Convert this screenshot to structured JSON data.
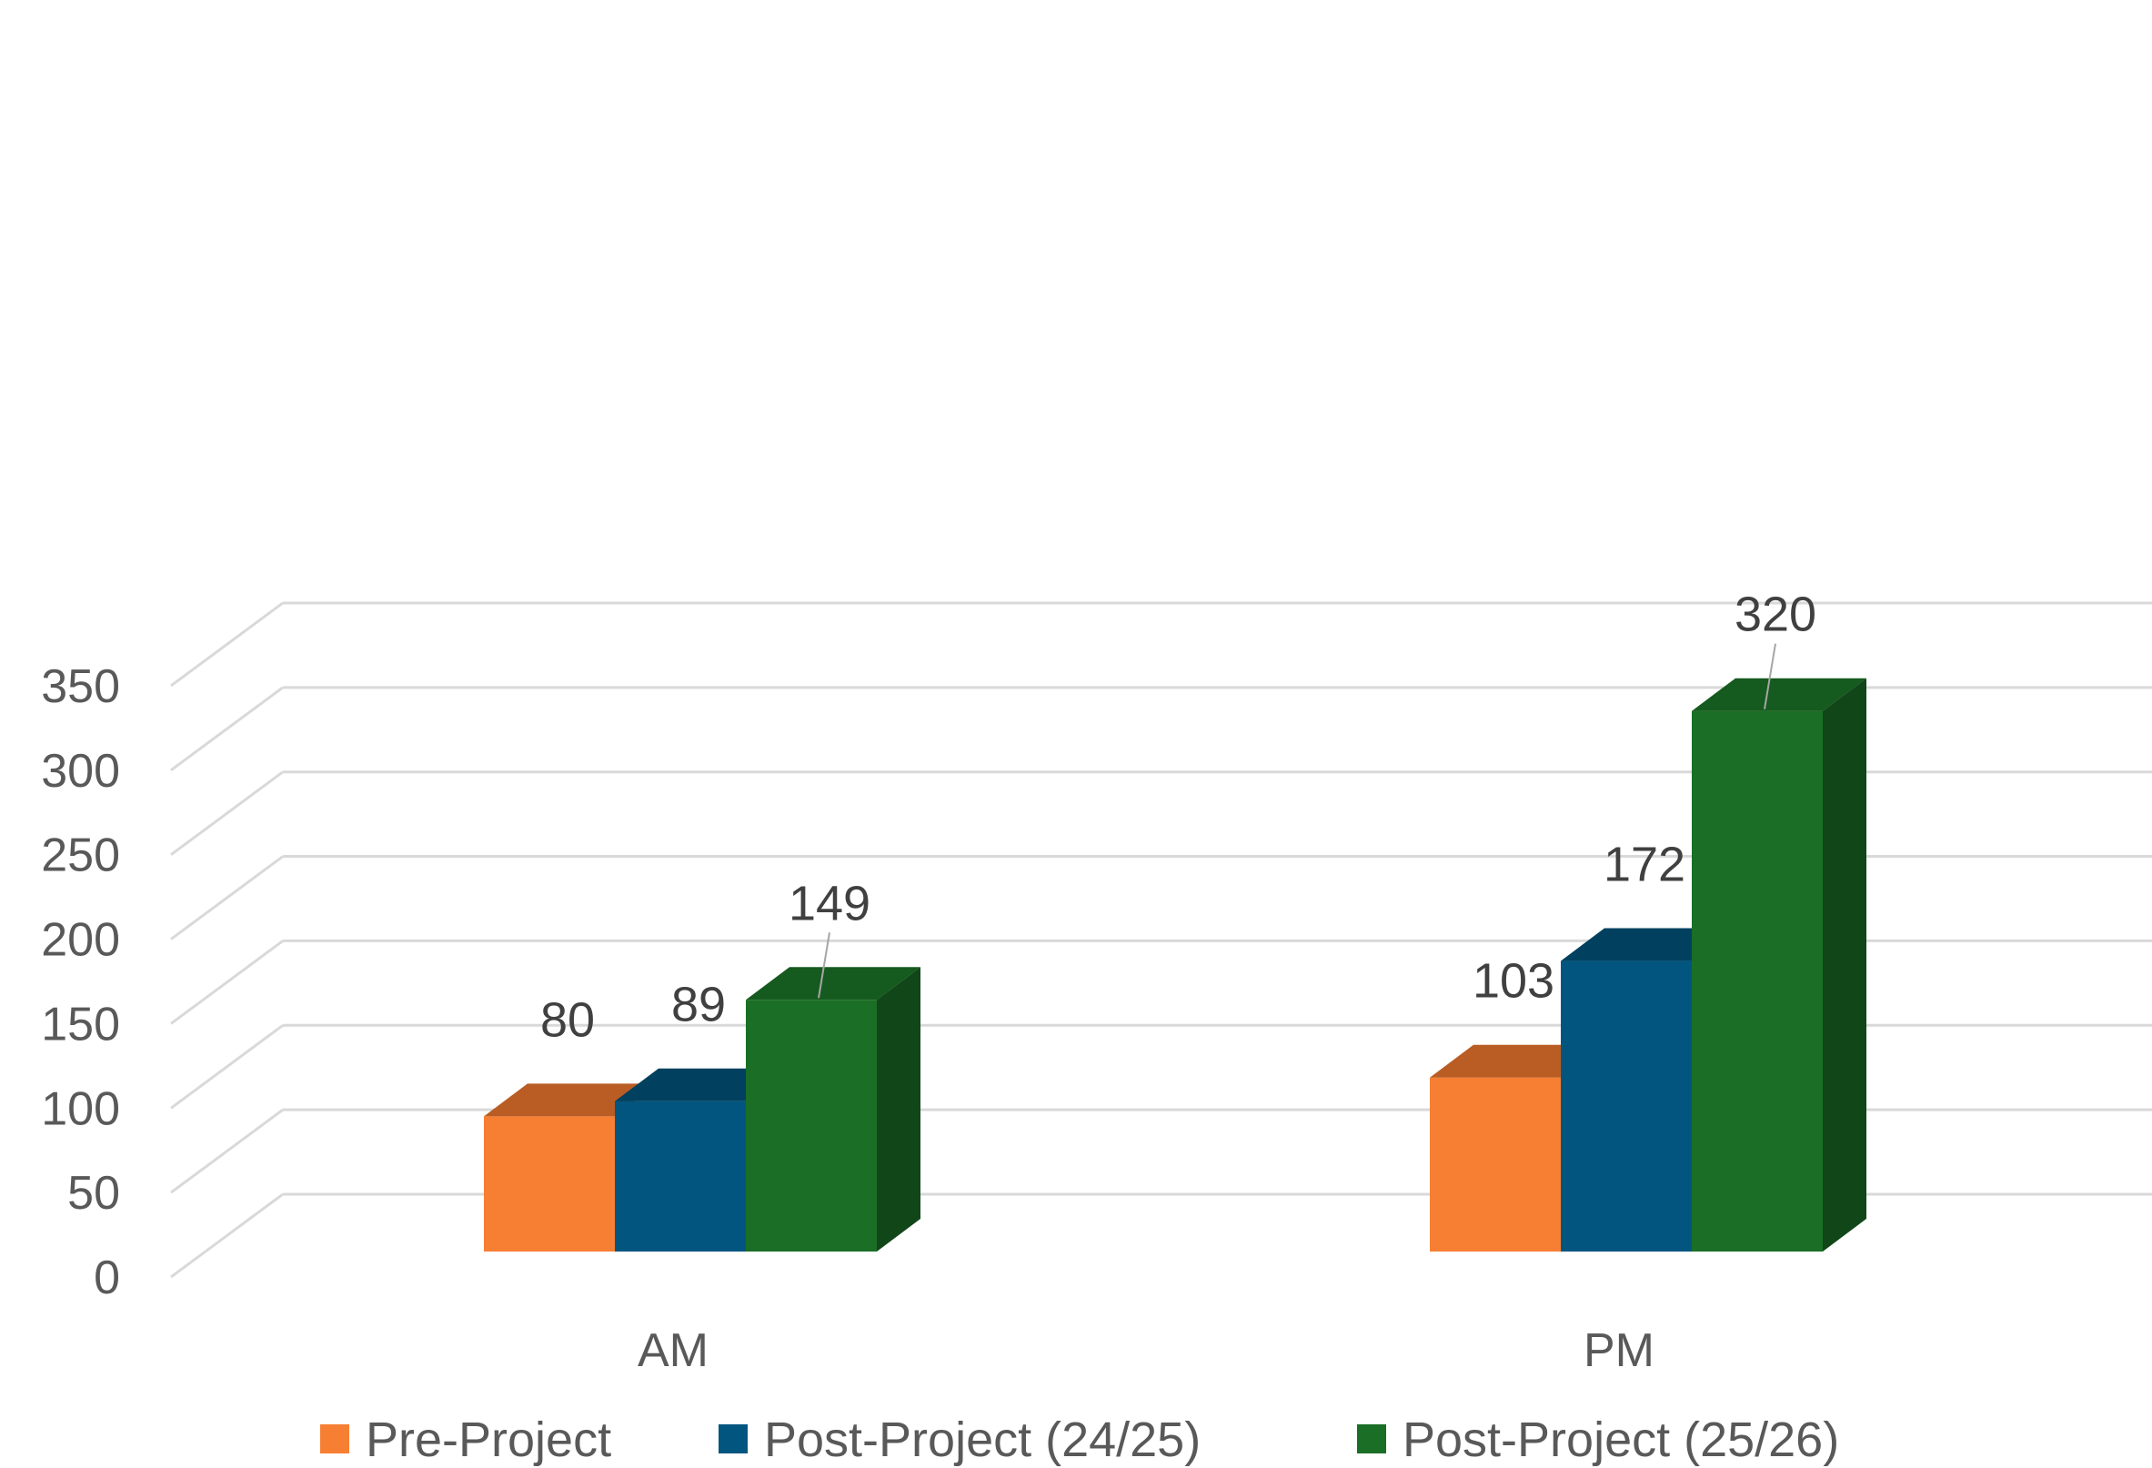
{
  "chart_data": {
    "type": "bar",
    "style": "3d-clustered-column",
    "categories": [
      "AM",
      "PM"
    ],
    "series": [
      {
        "name": "Pre-Project",
        "values": [
          80,
          103
        ],
        "color": "#F77F33",
        "top_color": "#BA5D24",
        "side_color": "#BA5D24"
      },
      {
        "name": "Post-Project (24/25)",
        "values": [
          89,
          172
        ],
        "color": "#02557F",
        "top_color": "#01415F",
        "side_color": "#01415F"
      },
      {
        "name": "Post-Project (25/26)",
        "values": [
          149,
          320
        ],
        "color": "#1A6E25",
        "top_color": "#155A1E",
        "side_color": "#114619"
      }
    ],
    "yticks": [
      "0",
      "50",
      "100",
      "150",
      "200",
      "250",
      "300",
      "350"
    ],
    "ylim": [
      0,
      350
    ],
    "grid": true,
    "legend_position": "bottom",
    "gridline_color": "#D9D9D9"
  }
}
